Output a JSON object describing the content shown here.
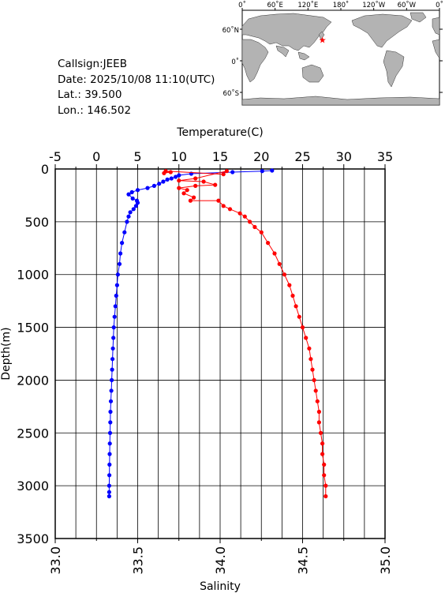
{
  "station": {
    "callsign": "Callsign:JEEB",
    "date": "Date:  2025/10/08 11:10(UTC)",
    "lat": "Lat.:  39.500",
    "lon": "Lon.:  146.502"
  },
  "map": {
    "top_labels": [
      "0˚",
      "60˚E",
      "120˚E",
      "180˚",
      "120˚W",
      "60˚W",
      "0˚"
    ],
    "left_labels": [
      "60˚N",
      "0˚",
      "60˚S"
    ],
    "marker_lon": 146.502,
    "marker_lat": 39.5,
    "marker_color": "#ff0000",
    "land_color": "#b3b3b3",
    "ocean_color": "#ffffff"
  },
  "chart_data": {
    "type": "line",
    "ylabel": "Depth(m)",
    "x_top_label": "Temperature(C)",
    "x_bottom_label": "Salinity",
    "ylim": [
      0,
      3500
    ],
    "y_inverted": true,
    "y_ticks": [
      "0",
      "500",
      "1000",
      "1500",
      "2000",
      "2500",
      "3000",
      "3500"
    ],
    "temp_range": [
      -5,
      35
    ],
    "temp_ticks": [
      "-5",
      "0",
      "5",
      "10",
      "15",
      "20",
      "25",
      "30",
      "35"
    ],
    "sal_range": [
      33.0,
      35.0
    ],
    "sal_ticks": [
      "33.0",
      "33.5",
      "34.0",
      "34.5",
      "35.0"
    ],
    "grid": true,
    "series": [
      {
        "variable": "temperature",
        "color": "#0000ff",
        "points": [
          [
            21.3,
            15
          ],
          [
            20.1,
            20
          ],
          [
            16.5,
            30
          ],
          [
            11.5,
            45
          ],
          [
            10.0,
            60
          ],
          [
            9.6,
            75
          ],
          [
            9.1,
            90
          ],
          [
            8.6,
            100
          ],
          [
            8.1,
            120
          ],
          [
            7.6,
            140
          ],
          [
            7.0,
            160
          ],
          [
            6.2,
            180
          ],
          [
            5.0,
            200
          ],
          [
            4.3,
            220
          ],
          [
            3.9,
            240
          ],
          [
            4.4,
            280
          ],
          [
            4.9,
            300
          ],
          [
            5.0,
            320
          ],
          [
            4.8,
            350
          ],
          [
            4.5,
            380
          ],
          [
            4.1,
            410
          ],
          [
            3.9,
            450
          ],
          [
            3.7,
            500
          ],
          [
            3.4,
            600
          ],
          [
            3.1,
            700
          ],
          [
            2.9,
            800
          ],
          [
            2.8,
            900
          ],
          [
            2.6,
            1000
          ],
          [
            2.5,
            1100
          ],
          [
            2.4,
            1200
          ],
          [
            2.3,
            1300
          ],
          [
            2.2,
            1400
          ],
          [
            2.1,
            1500
          ],
          [
            2.05,
            1600
          ],
          [
            2.0,
            1700
          ],
          [
            1.95,
            1800
          ],
          [
            1.9,
            1900
          ],
          [
            1.85,
            2000
          ],
          [
            1.8,
            2100
          ],
          [
            1.75,
            2200
          ],
          [
            1.7,
            2300
          ],
          [
            1.68,
            2400
          ],
          [
            1.65,
            2500
          ],
          [
            1.62,
            2600
          ],
          [
            1.6,
            2700
          ],
          [
            1.58,
            2800
          ],
          [
            1.56,
            2900
          ],
          [
            1.55,
            3000
          ],
          [
            1.55,
            3060
          ],
          [
            1.55,
            3100
          ]
        ]
      },
      {
        "variable": "salinity",
        "color": "#ff0000",
        "points": [
          [
            33.66,
            40
          ],
          [
            33.7,
            30
          ],
          [
            33.67,
            20
          ],
          [
            34.02,
            50
          ],
          [
            34.04,
            20
          ],
          [
            33.85,
            90
          ],
          [
            33.75,
            110
          ],
          [
            33.9,
            120
          ],
          [
            33.97,
            150
          ],
          [
            33.85,
            160
          ],
          [
            33.75,
            180
          ],
          [
            33.8,
            200
          ],
          [
            33.78,
            230
          ],
          [
            33.84,
            270
          ],
          [
            33.82,
            300
          ],
          [
            33.99,
            300
          ],
          [
            34.02,
            350
          ],
          [
            34.06,
            380
          ],
          [
            34.12,
            420
          ],
          [
            34.15,
            450
          ],
          [
            34.18,
            500
          ],
          [
            34.21,
            550
          ],
          [
            34.25,
            600
          ],
          [
            34.29,
            700
          ],
          [
            34.33,
            800
          ],
          [
            34.36,
            900
          ],
          [
            34.39,
            1000
          ],
          [
            34.42,
            1100
          ],
          [
            34.44,
            1200
          ],
          [
            34.46,
            1300
          ],
          [
            34.48,
            1400
          ],
          [
            34.5,
            1500
          ],
          [
            34.52,
            1600
          ],
          [
            34.54,
            1700
          ],
          [
            34.55,
            1800
          ],
          [
            34.56,
            1900
          ],
          [
            34.57,
            2000
          ],
          [
            34.58,
            2100
          ],
          [
            34.59,
            2200
          ],
          [
            34.6,
            2300
          ],
          [
            34.6,
            2400
          ],
          [
            34.61,
            2500
          ],
          [
            34.62,
            2600
          ],
          [
            34.62,
            2700
          ],
          [
            34.63,
            2800
          ],
          [
            34.63,
            2900
          ],
          [
            34.64,
            3000
          ],
          [
            34.64,
            3100
          ]
        ]
      }
    ]
  }
}
